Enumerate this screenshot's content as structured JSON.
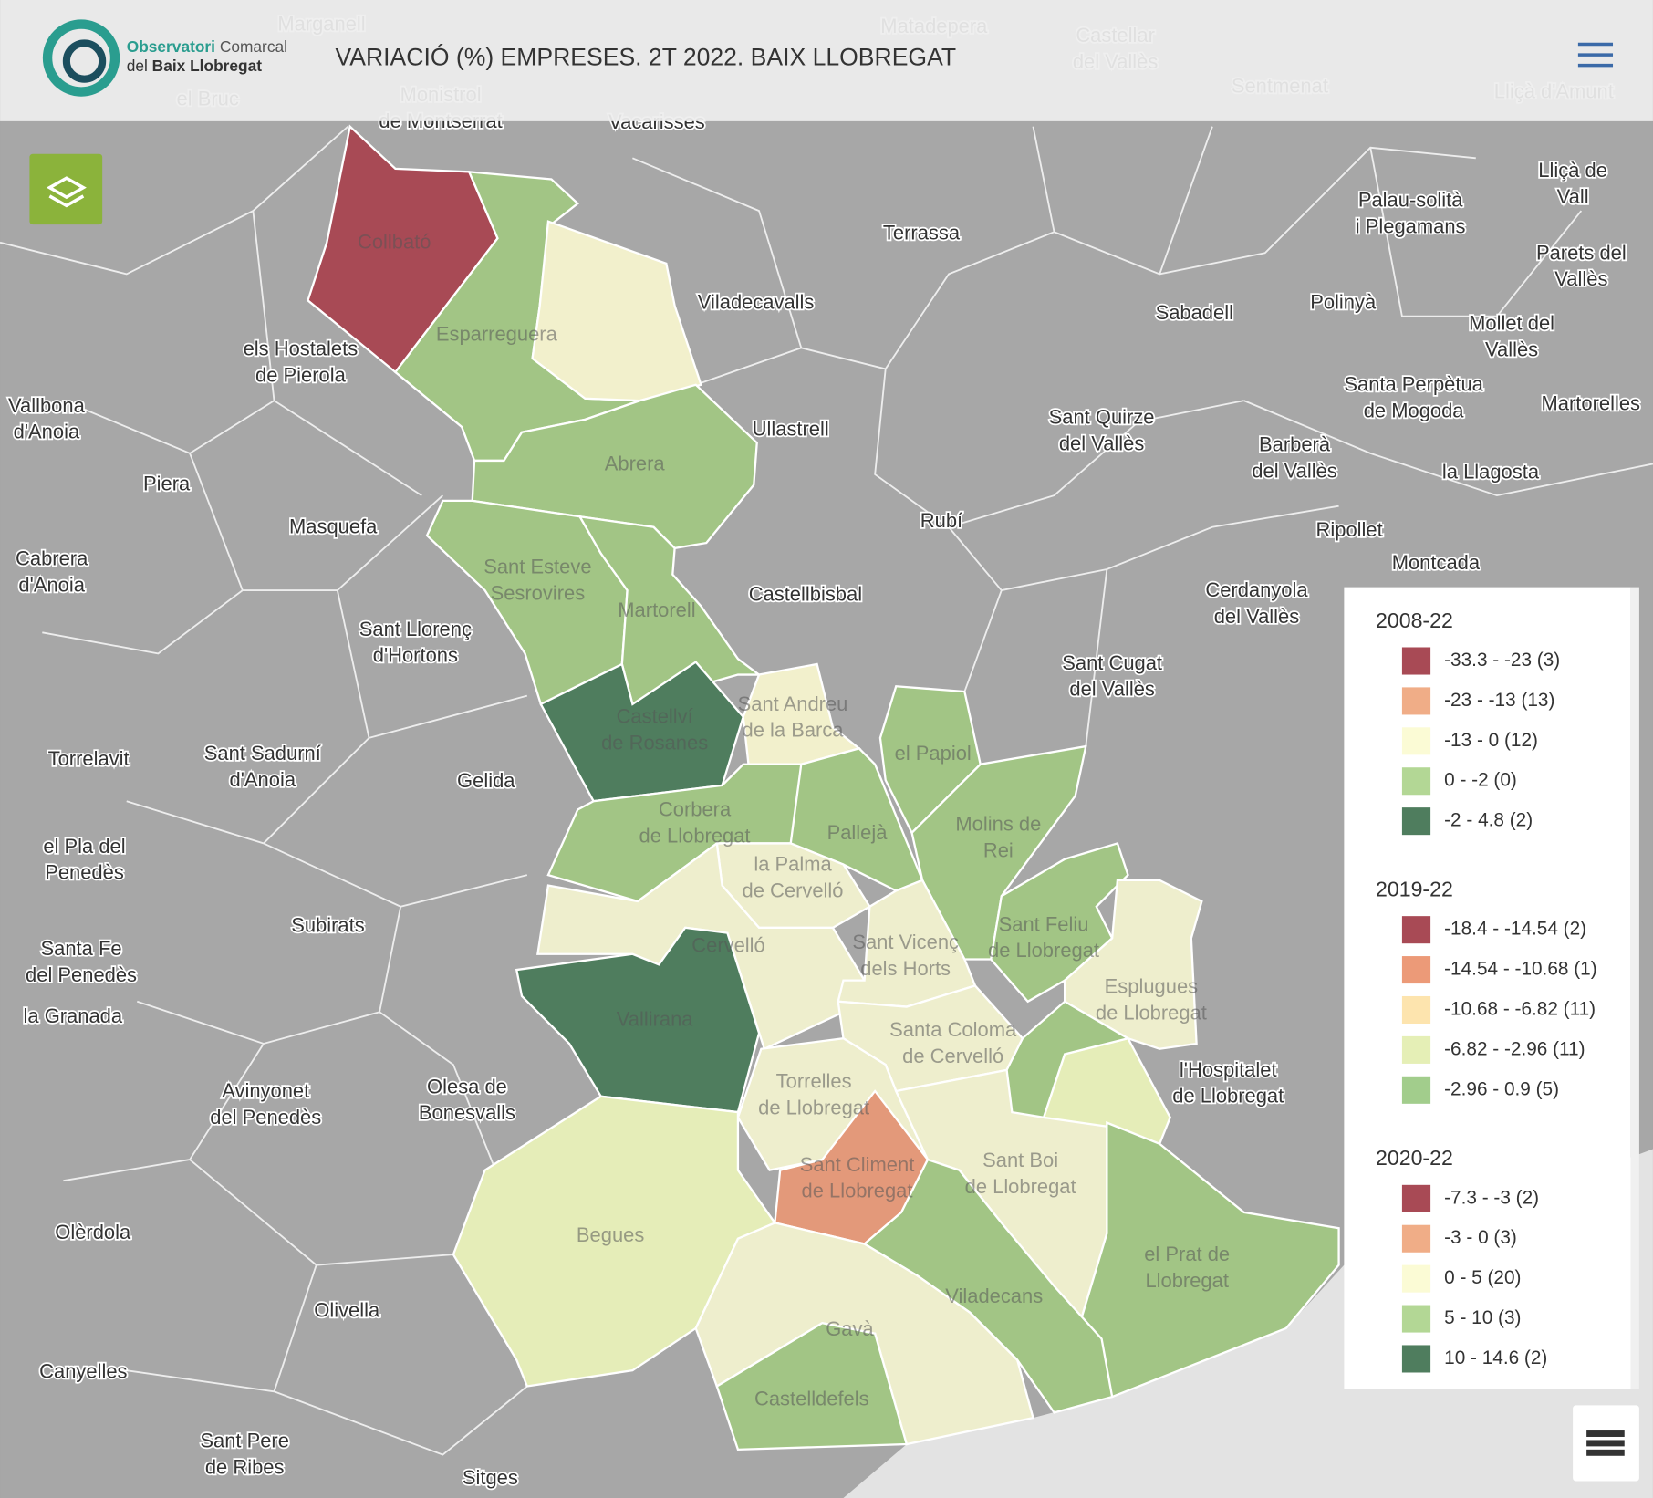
{
  "header": {
    "logo": {
      "line1": [
        "Observatori",
        "Comarcal"
      ],
      "line2": [
        "del",
        "Baix Llobregat"
      ]
    },
    "title": "VARIACIÓ (%) EMPRESES. 2T 2022. BAIX LLOBREGAT"
  },
  "map": {
    "places": [
      [
        "Marganell"
      ],
      [
        "Matadepera"
      ],
      [
        "Castellar",
        "del Vallès"
      ],
      [
        "Sentmenat"
      ],
      [
        "Lliçà d'Amunt"
      ],
      [
        "el Bruc"
      ],
      [
        "Monistrol",
        "de Montserrat"
      ],
      [
        "Vacarisses"
      ],
      [
        "Terrassa"
      ],
      [
        "Lliçà de",
        "Vall"
      ],
      [
        "Palau-solità",
        "i Plegamans"
      ],
      [
        "Parets del",
        "Vallès"
      ],
      [
        "Viladecavalls"
      ],
      [
        "Sabadell"
      ],
      [
        "Polinyà"
      ],
      [
        "Mollet del",
        "Vallès"
      ],
      [
        "els Hostalets",
        "de Pierola"
      ],
      [
        "Santa Perpètua",
        "de Mogoda"
      ],
      [
        "Martorelles"
      ],
      [
        "Vallbona",
        "d'Anoia"
      ],
      [
        "Ullastrell"
      ],
      [
        "Sant Quirze",
        "del Vallès"
      ],
      [
        "Barberà",
        "del Vallès"
      ],
      [
        "la Llagosta"
      ],
      [
        "Piera"
      ],
      [
        "Rubí"
      ],
      [
        "Masquefa"
      ],
      [
        "Ripollet"
      ],
      [
        "Cabrera",
        "d'Anoia"
      ],
      [
        "Montcada"
      ],
      [
        "Castellbisbal"
      ],
      [
        "Cerdanyola",
        "del Vallès"
      ],
      [
        "Sant Llorenç",
        "d'Hortons"
      ],
      [
        "Sant Cugat",
        "del Vallès"
      ],
      [
        "Torrelavit"
      ],
      [
        "Sant Sadurní",
        "d'Anoia"
      ],
      [
        "Gelida"
      ],
      [
        "el Pla del",
        "Penedès"
      ],
      [
        "Subirats"
      ],
      [
        "Santa Fe",
        "del Penedès"
      ],
      [
        "la Granada"
      ],
      [
        "Avinyonet",
        "del Penedès"
      ],
      [
        "Olesa de",
        "Bonesvalls"
      ],
      [
        "l'Hospitalet",
        "de Llobregat"
      ],
      [
        "Olèrdola"
      ],
      [
        "Olivella"
      ],
      [
        "Canyelles"
      ],
      [
        "Sant Pere",
        "de Ribes"
      ],
      [
        "Sitges"
      ]
    ],
    "municipalities": [
      [
        "Collbató"
      ],
      [
        "Esparreguera"
      ],
      [
        "Abrera"
      ],
      [
        "Sant Esteve",
        "Sesrovires"
      ],
      [
        "Martorell"
      ],
      [
        "Castellví",
        "de Rosanes"
      ],
      [
        "Sant Andreu",
        "de la Barca"
      ],
      [
        "el Papiol"
      ],
      [
        "Corbera",
        "de Llobregat"
      ],
      [
        "Pallejà"
      ],
      [
        "Molins de",
        "Rei"
      ],
      [
        "la Palma",
        "de Cervelló"
      ],
      [
        "Cervelló"
      ],
      [
        "Sant Vicenç",
        "dels Horts"
      ],
      [
        "Sant Feliu",
        "de Llobregat"
      ],
      [
        "Esplugues",
        "de Llobregat"
      ],
      [
        "Vallirana"
      ],
      [
        "Santa Coloma",
        "de Cervelló"
      ],
      [
        "Torrelles",
        "de Llobregat"
      ],
      [
        "Sant Climent",
        "de Llobregat"
      ],
      [
        "Sant Boi",
        "de Llobregat"
      ],
      [
        "el Prat de",
        "Llobregat"
      ],
      [
        "Begues"
      ],
      [
        "Viladecans"
      ],
      [
        "Gavà"
      ],
      [
        "Castelldefels"
      ]
    ]
  },
  "legend": {
    "sections": [
      {
        "title": "2008-22",
        "items": [
          {
            "label": "-33.3 - -23 (3)",
            "color": "#a84a55"
          },
          {
            "label": "-23 - -13 (13)",
            "color": "#f0ad87"
          },
          {
            "label": "-13 - 0 (12)",
            "color": "#fbfbd5"
          },
          {
            "label": "0 - -2 (0)",
            "color": "#b3d795"
          },
          {
            "label": "-2 - 4.8 (2)",
            "color": "#4f7d5e"
          }
        ]
      },
      {
        "title": "2019-22",
        "items": [
          {
            "label": "-18.4 - -14.54 (2)",
            "color": "#a84a55"
          },
          {
            "label": "-14.54 - -10.68 (1)",
            "color": "#ec9a78"
          },
          {
            "label": "-10.68 - -6.82 (11)",
            "color": "#fde4ae"
          },
          {
            "label": "-6.82 - -2.96 (11)",
            "color": "#e5efb6"
          },
          {
            "label": "-2.96 - 0.9 (5)",
            "color": "#a2cd8c"
          }
        ]
      },
      {
        "title": "2020-22",
        "items": [
          {
            "label": "-7.3 - -3 (2)",
            "color": "#a84a55"
          },
          {
            "label": "-3 - 0 (3)",
            "color": "#f0ad87"
          },
          {
            "label": "0 - 5 (20)",
            "color": "#fbfbd5"
          },
          {
            "label": "5 - 10 (3)",
            "color": "#b3d795"
          },
          {
            "label": "10 - 14.6 (2)",
            "color": "#4f7d5e"
          }
        ]
      }
    ]
  }
}
